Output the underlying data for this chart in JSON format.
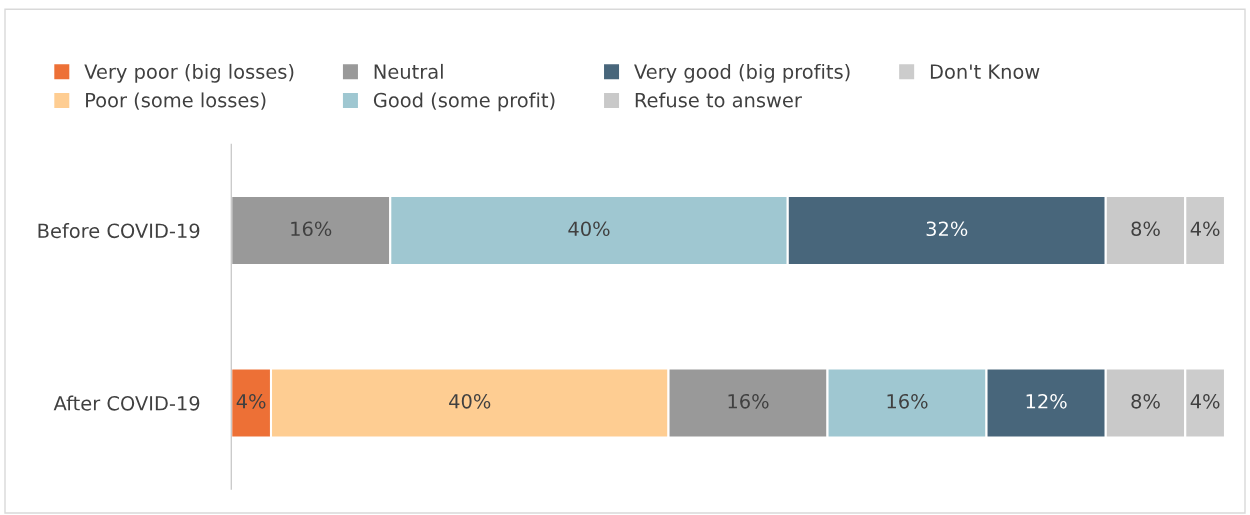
{
  "chart_data": {
    "type": "bar",
    "orientation": "horizontal",
    "stacked": true,
    "legend": "top",
    "categories": [
      "Before COVID-19",
      "After COVID-19"
    ],
    "series": [
      {
        "name": "Very poor (big losses)",
        "color": "#ed7036",
        "values": [
          null,
          4
        ],
        "value_labels": [
          null,
          "4%"
        ]
      },
      {
        "name": "Poor (some losses)",
        "color": "#fecd92",
        "values": [
          null,
          40
        ],
        "value_labels": [
          null,
          "40%"
        ]
      },
      {
        "name": "Neutral",
        "color": "#999999",
        "values": [
          16,
          16
        ],
        "value_labels": [
          "16%",
          "16%"
        ]
      },
      {
        "name": "Good (some profit)",
        "color": "#9fc7d1",
        "values": [
          40,
          16
        ],
        "value_labels": [
          "40%",
          "16%"
        ]
      },
      {
        "name": "Very good (big profits)",
        "color": "#48667b",
        "values": [
          32,
          12
        ],
        "value_labels": [
          "32%",
          "12%"
        ]
      },
      {
        "name": "Refuse to answer",
        "color": "#c9c9c9",
        "values": [
          8,
          8
        ],
        "value_labels": [
          "8%",
          "8%"
        ]
      },
      {
        "name": "Don't Know",
        "color": "#cccccc",
        "values": [
          4,
          4
        ],
        "value_labels": [
          "4%",
          "4%"
        ]
      }
    ]
  }
}
